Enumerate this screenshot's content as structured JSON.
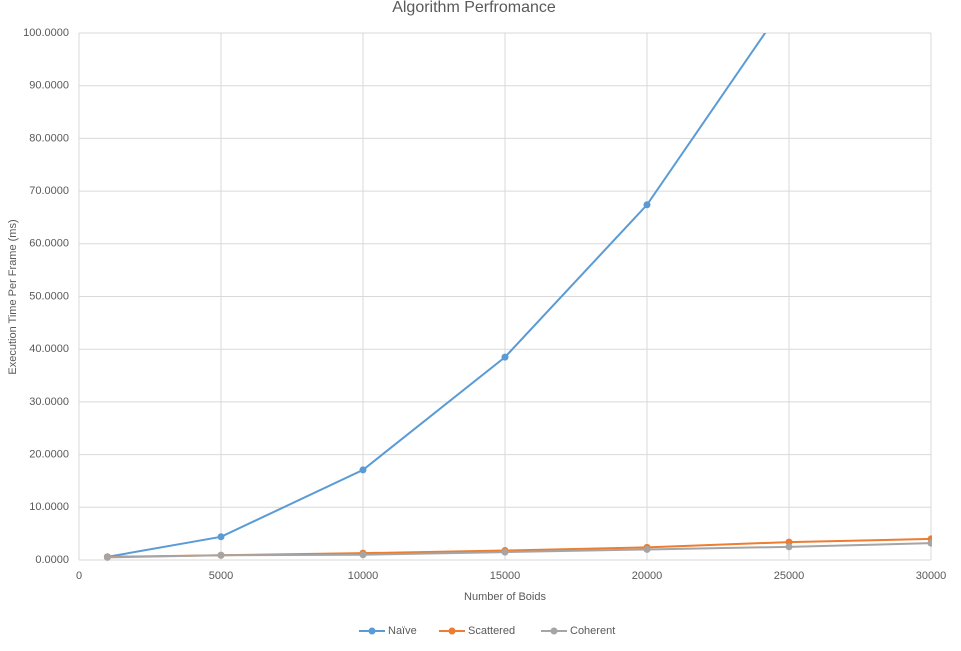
{
  "chart_data": {
    "type": "line",
    "title": "Algorithm Perfromance",
    "x_label": "Number of Boids",
    "y_label": "Execution Time Per Frame (ms)",
    "x": [
      1000,
      5000,
      10000,
      15000,
      20000,
      25000,
      30000
    ],
    "series": [
      {
        "name": "Naïve",
        "color": "#5b9bd5",
        "values": [
          0.6,
          4.4,
          17.1,
          38.5,
          67.4,
          106.6,
          null
        ]
      },
      {
        "name": "Scattered",
        "color": "#ed7d31",
        "values": [
          0.6,
          0.9,
          1.3,
          1.8,
          2.4,
          3.4,
          4.0
        ]
      },
      {
        "name": "Coherent",
        "color": "#a5a5a5",
        "values": [
          0.5,
          0.9,
          1.0,
          1.5,
          2.0,
          2.5,
          3.2
        ]
      }
    ],
    "xlim": [
      0,
      30000
    ],
    "xticks": [
      0,
      5000,
      10000,
      15000,
      20000,
      25000,
      30000
    ],
    "ylim": [
      0,
      100
    ],
    "yticks": [
      {
        "value": 0,
        "label": "0.0000"
      },
      {
        "value": 10,
        "label": "10.0000"
      },
      {
        "value": 20,
        "label": "20.0000"
      },
      {
        "value": 30,
        "label": "30.0000"
      },
      {
        "value": 40,
        "label": "40.0000"
      },
      {
        "value": 50,
        "label": "50.0000"
      },
      {
        "value": 60,
        "label": "60.0000"
      },
      {
        "value": 70,
        "label": "70.0000"
      },
      {
        "value": 80,
        "label": "80.0000"
      },
      {
        "value": 90,
        "label": "90.0000"
      },
      {
        "value": 100,
        "label": "100.0000"
      }
    ],
    "grid": true,
    "legend": "bottom"
  }
}
